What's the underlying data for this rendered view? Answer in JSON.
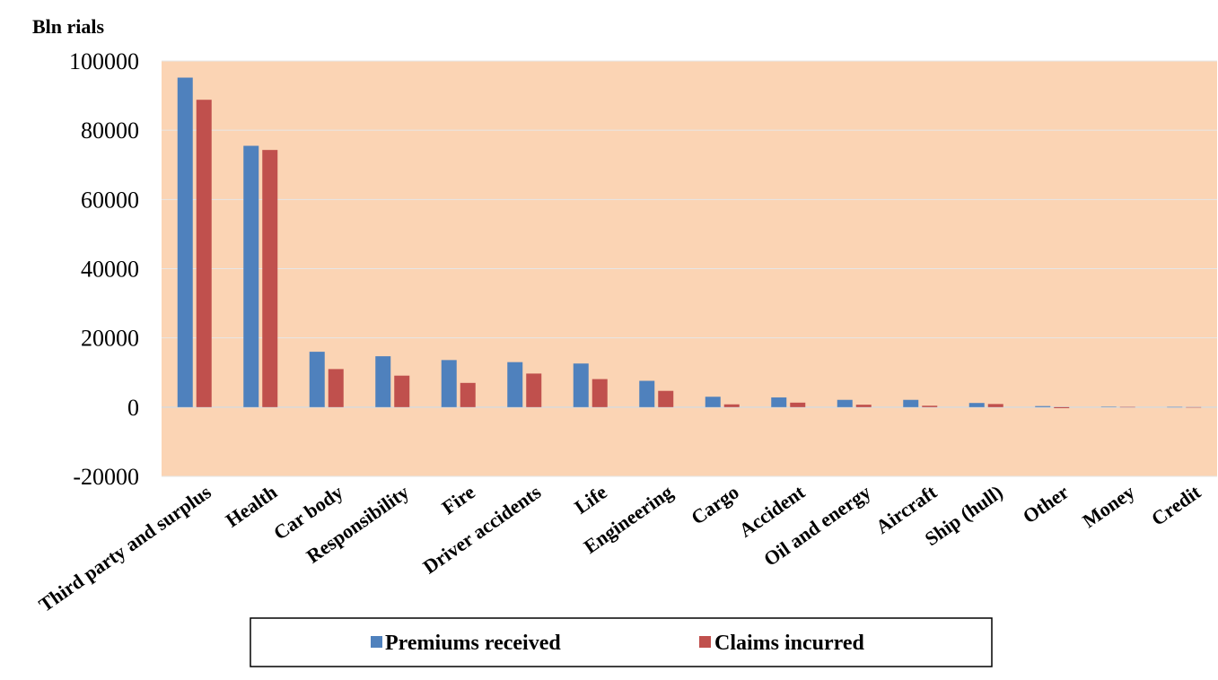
{
  "chart_data": {
    "type": "bar",
    "title": "",
    "ylabel": "Bln rials",
    "xlabel": "",
    "ylim": [
      -20000,
      100000
    ],
    "yticks": [
      -20000,
      0,
      20000,
      40000,
      60000,
      80000,
      100000
    ],
    "grid": true,
    "legend_position": "bottom",
    "plot_background": "#fbd4b4",
    "categories": [
      "Third party and surplus",
      "Health",
      "Car body",
      "Responsibility",
      "Fire",
      "Driver accidents",
      "Life",
      "Engineering",
      "Cargo",
      "Accident",
      "Oil and energy",
      "Aircraft",
      "Ship (hull)",
      "Other",
      "Money",
      "Credit"
    ],
    "series": [
      {
        "name": "Premiums received",
        "color": "#4f81bd",
        "values": [
          95200,
          75500,
          16000,
          14700,
          13600,
          13000,
          12600,
          7600,
          3000,
          2800,
          2100,
          2100,
          1200,
          300,
          100,
          50
        ]
      },
      {
        "name": "Claims incurred",
        "color": "#c0504d",
        "values": [
          88800,
          74300,
          11000,
          9100,
          7000,
          9700,
          8100,
          4700,
          800,
          1300,
          700,
          400,
          900,
          -300,
          50,
          0
        ]
      }
    ]
  }
}
